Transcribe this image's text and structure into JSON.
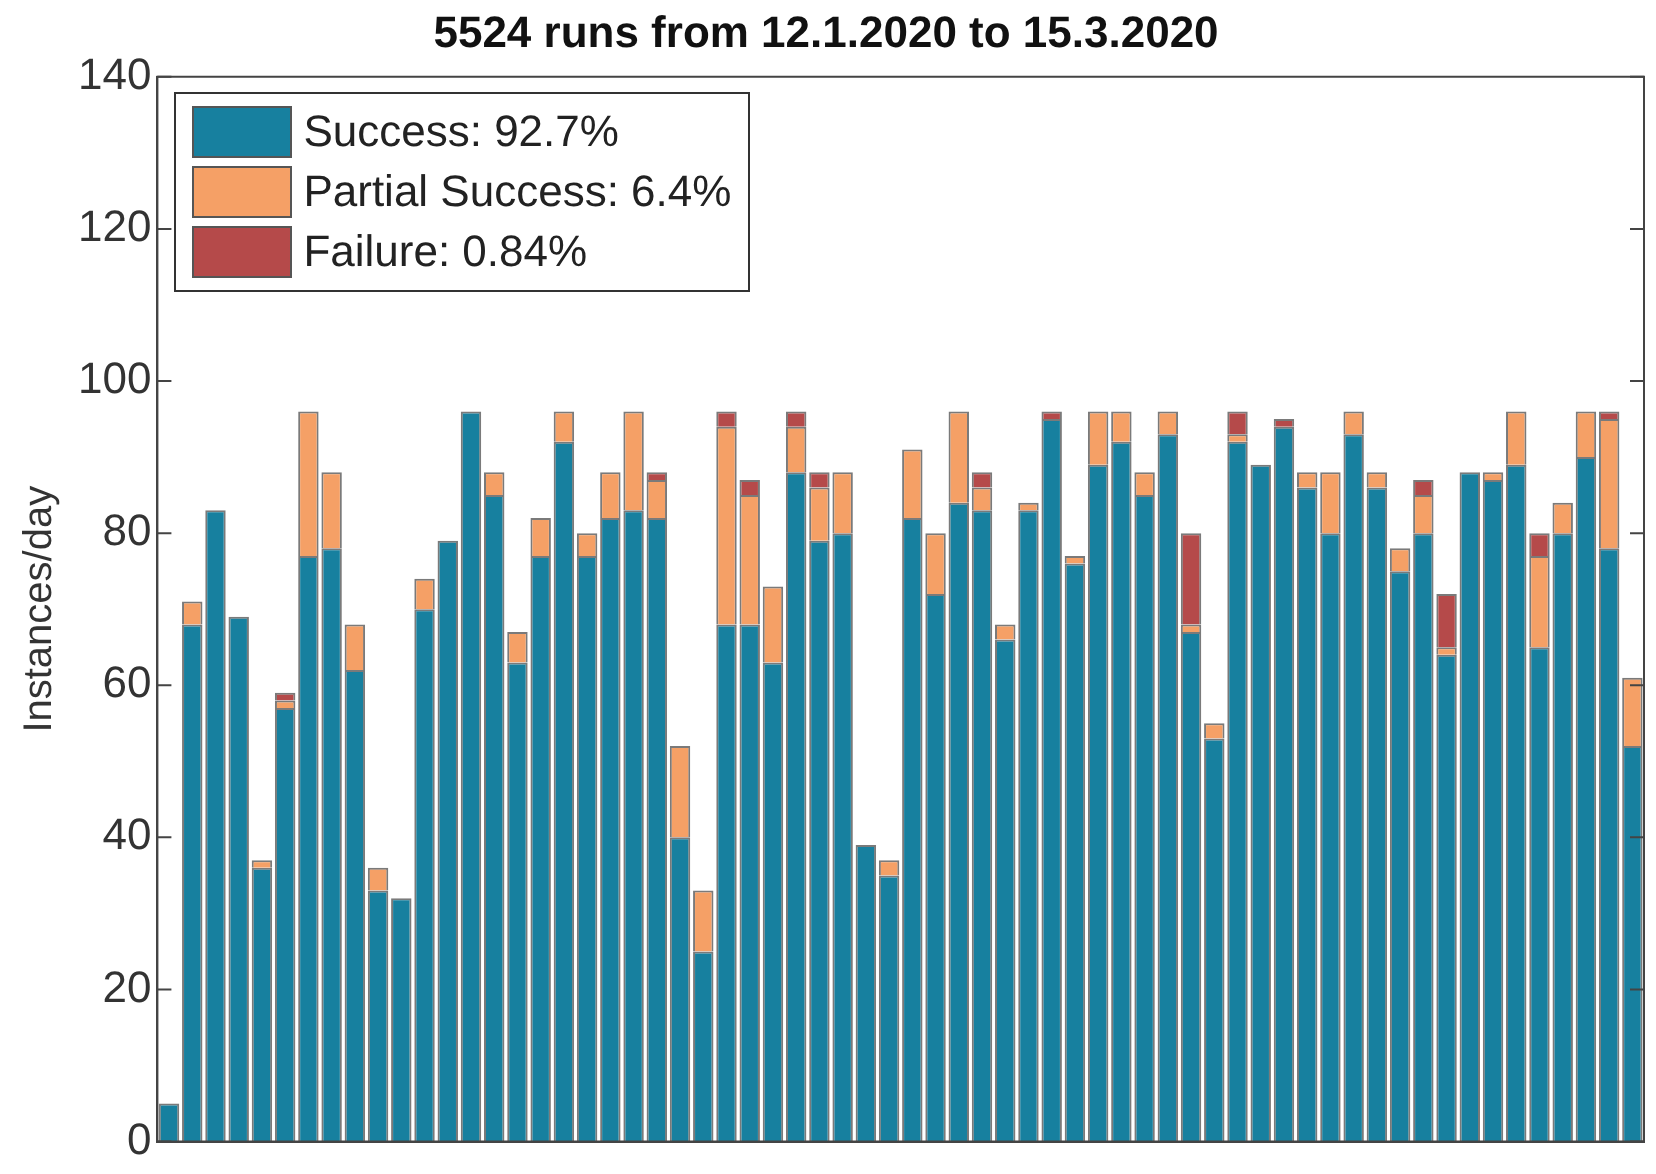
{
  "chart_data": {
    "type": "bar",
    "title": "5524 runs from 12.1.2020 to 15.3.2020",
    "ylabel": "Instances/day",
    "stacked": true,
    "categories": [
      null,
      null,
      null,
      null,
      null,
      null,
      null,
      null,
      null,
      null,
      null,
      null,
      null,
      null,
      null,
      null,
      null,
      null,
      null,
      null,
      null,
      null,
      null,
      null,
      null,
      null,
      null,
      null,
      null,
      null,
      null,
      null,
      null,
      null,
      null,
      null,
      null,
      null,
      null,
      null,
      null,
      null,
      null,
      null,
      null,
      null,
      null,
      null,
      null,
      null,
      null,
      null,
      null,
      null,
      null,
      null,
      null,
      null,
      null,
      null,
      null,
      null,
      null,
      null
    ],
    "series": [
      {
        "name": "Success: 92.7%",
        "color": "#17809f",
        "values": [
          5,
          68,
          83,
          69,
          36,
          57,
          77,
          78,
          62,
          33,
          32,
          70,
          79,
          96,
          85,
          63,
          77,
          92,
          77,
          82,
          83,
          82,
          40,
          25,
          68,
          68,
          63,
          88,
          79,
          80,
          39,
          35,
          82,
          72,
          84,
          83,
          66,
          83,
          95,
          76,
          89,
          92,
          85,
          93,
          67,
          53,
          92,
          89,
          94,
          86,
          80,
          93,
          86,
          75,
          80,
          64,
          88,
          87,
          89,
          65,
          80,
          90,
          78,
          52
        ]
      },
      {
        "name": "Partial Success: 6.4%",
        "color": "#f5a066",
        "values": [
          0,
          3,
          0,
          0,
          1,
          1,
          19,
          10,
          6,
          3,
          0,
          4,
          0,
          0,
          3,
          4,
          5,
          4,
          3,
          6,
          13,
          5,
          12,
          8,
          26,
          17,
          10,
          6,
          7,
          8,
          0,
          2,
          9,
          8,
          12,
          3,
          2,
          1,
          0,
          1,
          7,
          4,
          3,
          3,
          1,
          2,
          1,
          0,
          0,
          2,
          8,
          3,
          2,
          3,
          5,
          1,
          0,
          1,
          7,
          12,
          4,
          6,
          17,
          9
        ]
      },
      {
        "name": "Failure: 0.84%",
        "color": "#b54a4a",
        "values": [
          0,
          0,
          0,
          0,
          0,
          1,
          0,
          0,
          0,
          0,
          0,
          0,
          0,
          0,
          0,
          0,
          0,
          0,
          0,
          0,
          0,
          1,
          0,
          0,
          2,
          2,
          0,
          2,
          2,
          0,
          0,
          0,
          0,
          0,
          0,
          2,
          0,
          0,
          1,
          0,
          0,
          0,
          0,
          0,
          12,
          0,
          3,
          0,
          1,
          0,
          0,
          0,
          0,
          0,
          2,
          7,
          0,
          0,
          0,
          3,
          0,
          0,
          1,
          0
        ]
      }
    ],
    "ylim": [
      0,
      140
    ],
    "yticks": [
      0,
      20,
      40,
      60,
      80,
      100,
      120,
      140
    ],
    "tick_labels": "y",
    "grid": false,
    "legend": "top left"
  }
}
